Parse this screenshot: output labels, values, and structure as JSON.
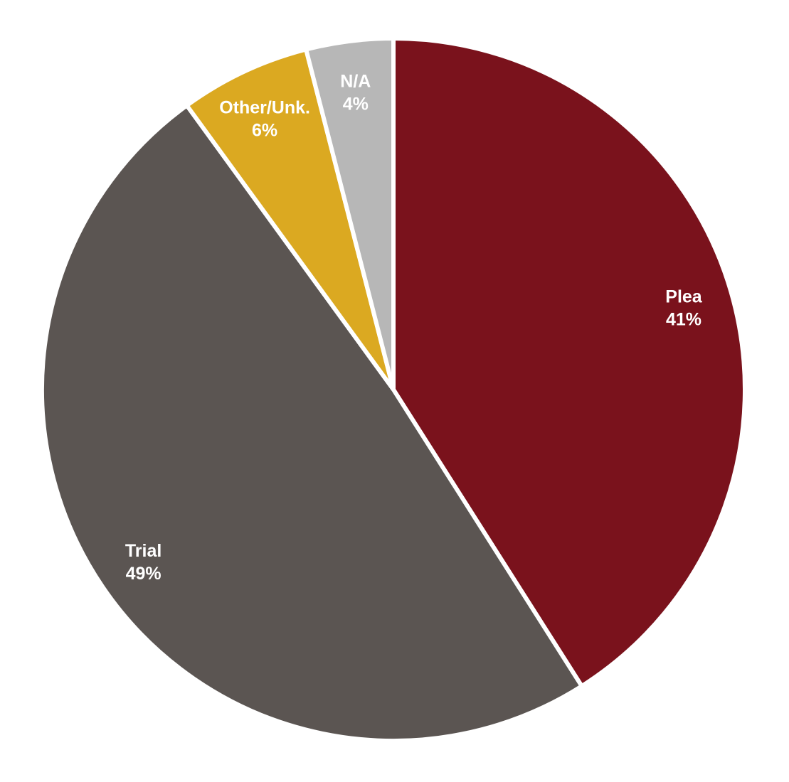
{
  "chart_data": {
    "type": "pie",
    "title": "",
    "start_angle_deg": 0,
    "direction": "clockwise",
    "slices": [
      {
        "name": "Plea",
        "value": 41,
        "label": "41%",
        "color": "#7a121c"
      },
      {
        "name": "Trial",
        "value": 49,
        "label": "49%",
        "color": "#5b5552"
      },
      {
        "name": "Other/Unk.",
        "value": 6,
        "label": "6%",
        "color": "#dba921"
      },
      {
        "name": "N/A",
        "value": 4,
        "label": "4%",
        "color": "#b7b7b7"
      }
    ]
  }
}
